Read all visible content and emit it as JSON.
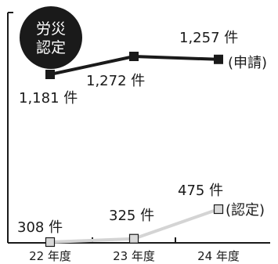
{
  "chart_data": {
    "type": "line",
    "badge": [
      "労災",
      "認定"
    ],
    "categories": [
      "22 年度",
      "23 年度",
      "24 年度"
    ],
    "value_unit": "件",
    "series": [
      {
        "name": "(申請)",
        "values": [
          1181,
          1272,
          1257
        ],
        "value_labels": [
          "1,181 件",
          "1,272 件",
          "1,257 件"
        ],
        "color": "#1a1a1a",
        "marker_fill": "#1a1a1a"
      },
      {
        "name": "(認定)",
        "values": [
          308,
          325,
          475
        ],
        "value_labels": [
          "308 件",
          "325 件",
          "475 件"
        ],
        "color": "#d4d4d4",
        "marker_fill": "#d9d9d9"
      }
    ],
    "grid": false,
    "legend": "inline-right"
  }
}
